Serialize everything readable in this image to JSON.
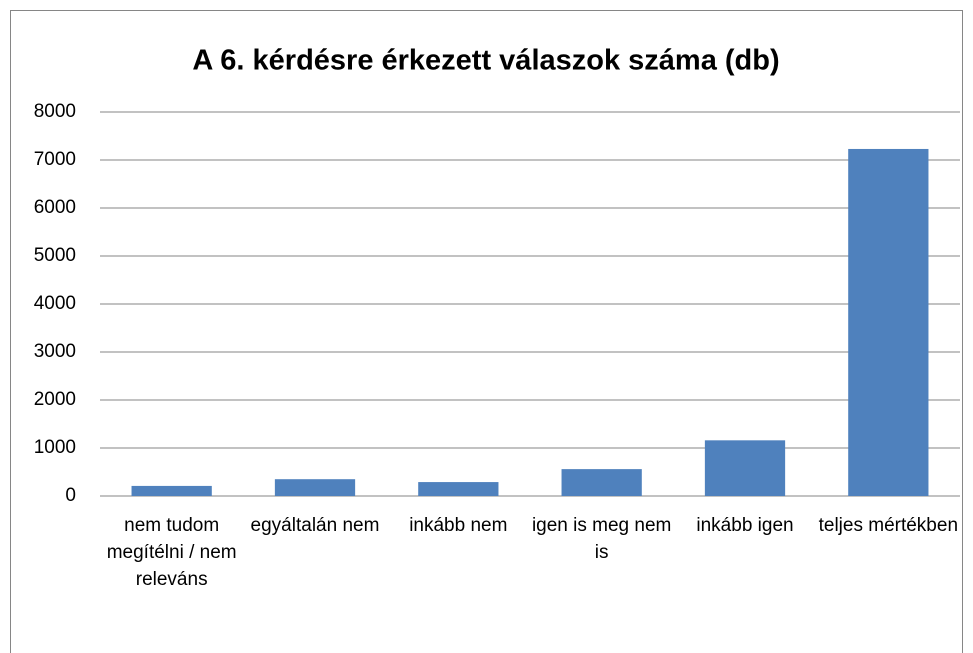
{
  "chart_data": {
    "type": "bar",
    "title": "A 6. kérdésre érkezett válaszok száma (db)",
    "categories": [
      "nem tudom megítélni / nem releváns",
      "egyáltalán nem",
      "inkább nem",
      "igen is meg nem is",
      "inkább igen",
      "teljes mértékben"
    ],
    "values": [
      210,
      350,
      290,
      560,
      1160,
      7230
    ],
    "color": "#4f81bd",
    "ylim": [
      0,
      8000
    ],
    "yticks": [
      0,
      1000,
      2000,
      3000,
      4000,
      5000,
      6000,
      7000,
      8000
    ],
    "grid": true
  }
}
